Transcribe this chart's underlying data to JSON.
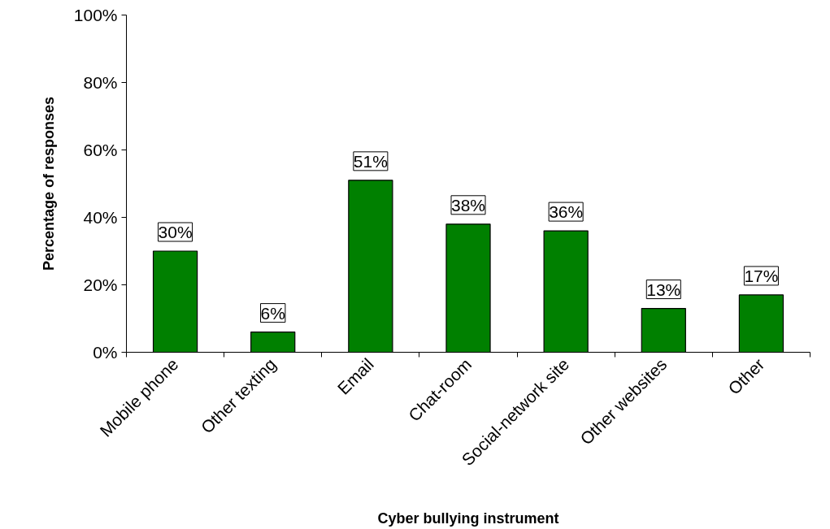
{
  "chart_data": {
    "type": "bar",
    "xlabel": "Cyber bullying instrument",
    "ylabel": "Percentage of responses",
    "categories": [
      "Mobile phone",
      "Other texting",
      "Email",
      "Chat-room",
      "Social-network site",
      "Other websites",
      "Other"
    ],
    "values": [
      30,
      6,
      51,
      38,
      36,
      13,
      17
    ],
    "value_labels": [
      "30%",
      "6%",
      "51%",
      "38%",
      "36%",
      "13%",
      "17%"
    ],
    "color": "#008000",
    "ylim": [
      0,
      100
    ],
    "yticks": [
      {
        "value": 0,
        "label": "0%"
      },
      {
        "value": 20,
        "label": "20%"
      },
      {
        "value": 40,
        "label": "40%"
      },
      {
        "value": 60,
        "label": "60%"
      },
      {
        "value": 80,
        "label": "80%"
      },
      {
        "value": 100,
        "label": "100%"
      }
    ],
    "grid": false
  }
}
